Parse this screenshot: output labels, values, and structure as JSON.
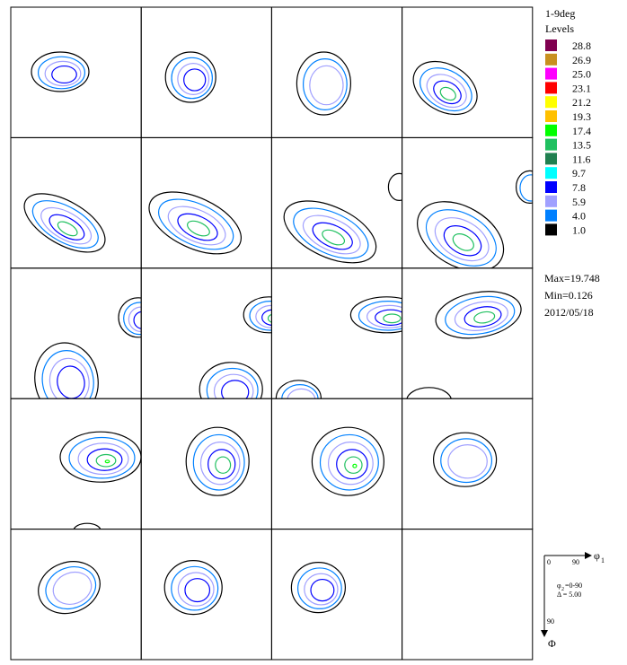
{
  "title": "1-9deg",
  "legend": {
    "heading": "Levels",
    "levels": [
      {
        "label": "28.8",
        "color": "#800050"
      },
      {
        "label": "26.9",
        "color": "#c89020"
      },
      {
        "label": "25.0",
        "color": "#ff00ff"
      },
      {
        "label": "23.1",
        "color": "#ff0000"
      },
      {
        "label": "21.2",
        "color": "#ffff00"
      },
      {
        "label": "19.3",
        "color": "#ffc000"
      },
      {
        "label": "17.4",
        "color": "#00ff00"
      },
      {
        "label": "13.5",
        "color": "#20c060"
      },
      {
        "label": "11.6",
        "color": "#208050"
      },
      {
        "label": "9.7",
        "color": "#00ffff"
      },
      {
        "label": "7.8",
        "color": "#0000ff"
      },
      {
        "label": "5.9",
        "color": "#a0a0ff"
      },
      {
        "label": "4.0",
        "color": "#0080ff"
      },
      {
        "label": "1.0",
        "color": "#000000"
      }
    ]
  },
  "stats": [
    "Max=19.748",
    "Min=0.126",
    "2012/05/18"
  ],
  "key": {
    "x_start": "0",
    "x_end": "90",
    "x_axis": "φ",
    "x_sub": "1",
    "phi2_symbol": "φ",
    "phi2_sub": "2",
    "phi2_range": "=0-90",
    "step": "Δ = 5.00",
    "y_end": "90",
    "y_axis": "Φ"
  }
}
